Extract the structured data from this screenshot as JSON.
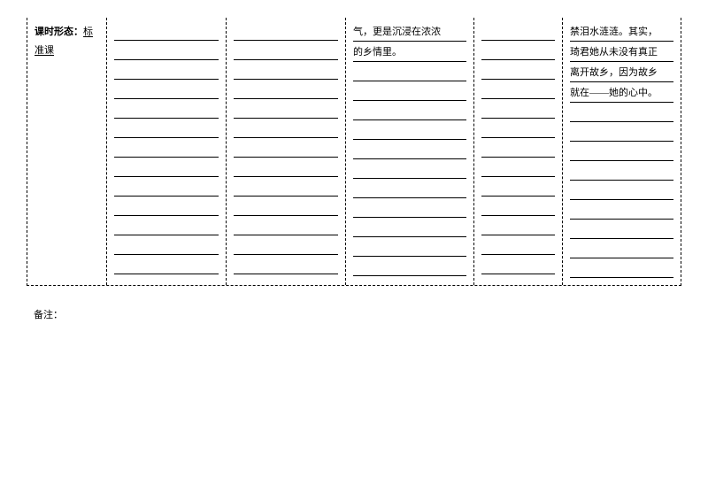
{
  "col1": {
    "label": "课时形态：",
    "value": "标准课"
  },
  "col4": {
    "lines": [
      "气，更是沉浸在浓浓",
      "的乡情里。"
    ]
  },
  "col6": {
    "lines": [
      "禁泪水涟涟。其实，",
      "琦君她从未没有真正",
      "离开故乡，因为故乡",
      "就在——她的心中。"
    ]
  },
  "note": "备注：",
  "blank_counts": {
    "col2": 13,
    "col3": 13,
    "col4_after": 11,
    "col5": 13,
    "col6_after": 9
  },
  "colors": {
    "background": "#ffffff",
    "text": "#000000",
    "border": "#000000"
  },
  "fonts": {
    "body_size": 11,
    "family": "SimSun"
  }
}
